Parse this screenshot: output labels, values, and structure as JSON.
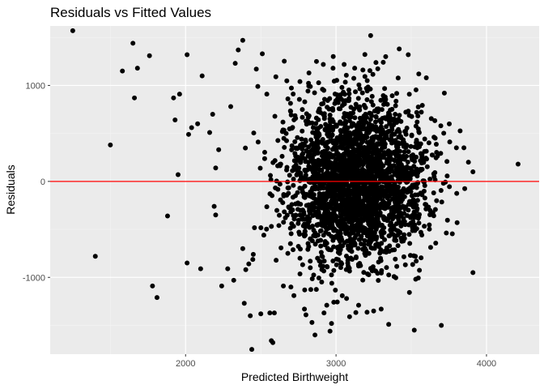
{
  "chart_data": {
    "type": "scatter",
    "title": "Residuals vs Fitted Values",
    "xlabel": "Predicted Birthweight",
    "ylabel": "Residuals",
    "xlim": [
      1100,
      4350
    ],
    "ylim": [
      -1800,
      1620
    ],
    "xticks": [
      2000,
      3000,
      4000
    ],
    "xtick_labels": [
      "2000",
      "3000",
      "4000"
    ],
    "yticks": [
      -1000,
      0,
      1000
    ],
    "ytick_labels": [
      "-1000",
      "0",
      "1000"
    ],
    "grid": true,
    "reference_line": {
      "y": 0,
      "color": "#ff0000"
    },
    "point_color": "#000000",
    "panel_color": "#ebebeb",
    "points": [
      [
        1250,
        1570
      ],
      [
        1400,
        -780
      ],
      [
        1500,
        380
      ],
      [
        1580,
        1150
      ],
      [
        1650,
        1440
      ],
      [
        1680,
        1180
      ],
      [
        1660,
        870
      ],
      [
        1760,
        1310
      ],
      [
        1780,
        -1090
      ],
      [
        1810,
        -1210
      ],
      [
        1880,
        -360
      ],
      [
        1920,
        870
      ],
      [
        1930,
        640
      ],
      [
        1950,
        70
      ],
      [
        1960,
        910
      ],
      [
        2010,
        1320
      ],
      [
        2010,
        -850
      ],
      [
        2020,
        490
      ],
      [
        2040,
        560
      ],
      [
        2080,
        600
      ],
      [
        2100,
        -910
      ],
      [
        2110,
        1100
      ],
      [
        2160,
        510
      ],
      [
        2180,
        700
      ],
      [
        2190,
        -260
      ],
      [
        2200,
        -350
      ],
      [
        2200,
        140
      ],
      [
        2220,
        330
      ],
      [
        2240,
        -1090
      ],
      [
        2280,
        -910
      ],
      [
        2300,
        780
      ],
      [
        2320,
        -1030
      ],
      [
        2330,
        1230
      ],
      [
        2350,
        1370
      ],
      [
        2380,
        1470
      ],
      [
        2380,
        -700
      ],
      [
        2390,
        -1270
      ],
      [
        2400,
        -920
      ],
      [
        2420,
        -860
      ],
      [
        2430,
        -1400
      ],
      [
        2440,
        -1750
      ],
      [
        2450,
        -760
      ],
      [
        2470,
        1170
      ],
      [
        2480,
        990
      ],
      [
        2500,
        -1380
      ],
      [
        2510,
        1330
      ],
      [
        2520,
        -560
      ],
      [
        2540,
        910
      ],
      [
        2560,
        -1370
      ],
      [
        2570,
        -1660
      ],
      [
        2580,
        -1680
      ],
      [
        2590,
        -1370
      ],
      [
        2600,
        1090
      ],
      [
        2620,
        -460
      ],
      [
        2650,
        -1090
      ],
      [
        2680,
        860
      ],
      [
        2700,
        -1100
      ],
      [
        2720,
        -1190
      ],
      [
        2760,
        1040
      ],
      [
        2790,
        -1330
      ],
      [
        2800,
        -1390
      ],
      [
        2820,
        1130
      ],
      [
        2840,
        -1470
      ],
      [
        2860,
        -1600
      ],
      [
        2870,
        1250
      ],
      [
        2920,
        -1370
      ],
      [
        2960,
        -1560
      ],
      [
        2970,
        -1480
      ],
      [
        2980,
        1180
      ],
      [
        3070,
        -1220
      ],
      [
        3090,
        -1410
      ],
      [
        3150,
        -1290
      ],
      [
        3230,
        1520
      ],
      [
        3250,
        -1350
      ],
      [
        3300,
        -1330
      ],
      [
        3330,
        1300
      ],
      [
        3350,
        -1490
      ],
      [
        3420,
        1380
      ],
      [
        3480,
        1320
      ],
      [
        3520,
        -1550
      ],
      [
        3550,
        1120
      ],
      [
        3600,
        1080
      ],
      [
        3700,
        -1500
      ],
      [
        3720,
        920
      ],
      [
        3800,
        350
      ],
      [
        3850,
        350
      ],
      [
        3880,
        200
      ],
      [
        3910,
        100
      ],
      [
        3910,
        -950
      ],
      [
        4210,
        180
      ]
    ]
  }
}
